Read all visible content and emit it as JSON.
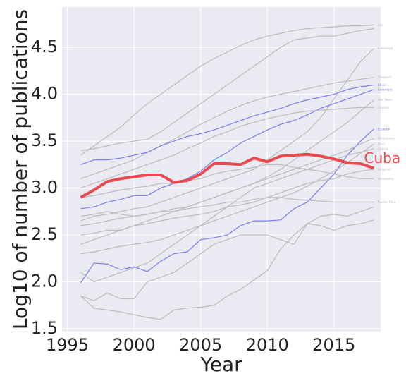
{
  "chart_data": {
    "type": "line",
    "x_label": "Year",
    "y_label": "Log10 of number of publications",
    "x": [
      1996,
      1997,
      1998,
      1999,
      2000,
      2001,
      2002,
      2003,
      2004,
      2005,
      2006,
      2007,
      2008,
      2009,
      2010,
      2011,
      2012,
      2013,
      2014,
      2015,
      2016,
      2017,
      2018
    ],
    "xlim": [
      1994.6,
      2018.5
    ],
    "xticks": [
      1995,
      2000,
      2005,
      2010,
      2015
    ],
    "ylim": [
      1.47,
      4.93
    ],
    "yticks": [
      1.5,
      {
        "value": 2.0,
        "label": "2.0"
      },
      2.5,
      {
        "value": 3.0,
        "label": "3.0"
      },
      3.5,
      {
        "value": 4.0,
        "label": "4.0"
      },
      4.5
    ],
    "grid": true,
    "background": "#eaeaf2",
    "series": [
      {
        "color": "#bbbbbb",
        "values": [
          1.85,
          1.72,
          1.7,
          1.68,
          1.65,
          1.62,
          1.6,
          1.7,
          1.72,
          1.73,
          1.75,
          1.85,
          1.92,
          2.02,
          2.12,
          2.35,
          2.5,
          2.62,
          2.6,
          2.55,
          2.6,
          2.62,
          2.66
        ]
      },
      {
        "color": "#bbbbbb",
        "values": [
          1.85,
          1.8,
          1.88,
          1.82,
          1.82,
          2.0,
          2.05,
          2.1,
          2.2,
          2.3,
          2.4,
          2.45,
          2.5,
          2.5,
          2.5,
          2.45,
          2.4,
          2.62,
          2.7,
          2.72,
          2.7,
          2.75,
          2.8
        ]
      },
      {
        "color": "#bbbbbb",
        "values": [
          3.4,
          3.42,
          3.45,
          3.48,
          3.5,
          3.52,
          3.6,
          3.7,
          3.8,
          3.9,
          4.0,
          4.1,
          4.2,
          4.3,
          4.4,
          4.5,
          4.58,
          4.6,
          4.62,
          4.62,
          4.65,
          4.68,
          4.7
        ]
      },
      {
        "name": "Iran",
        "color": "#bbbbbb",
        "values": [
          3.35,
          3.45,
          3.55,
          3.65,
          3.78,
          3.9,
          4.0,
          4.1,
          4.2,
          4.3,
          4.38,
          4.45,
          4.52,
          4.58,
          4.62,
          4.65,
          4.68,
          4.7,
          4.71,
          4.72,
          4.73,
          4.73,
          4.74
        ]
      },
      {
        "name": "Indonesia",
        "color": "#bbbbbb",
        "values": [
          2.65,
          2.7,
          2.72,
          2.75,
          2.78,
          2.8,
          2.85,
          2.9,
          2.95,
          3.0,
          3.05,
          3.1,
          3.15,
          3.2,
          3.3,
          3.4,
          3.5,
          3.6,
          3.75,
          3.95,
          4.15,
          4.35,
          4.49
        ]
      },
      {
        "name": "Thailand",
        "color": "#bbbbbb",
        "values": [
          3.1,
          3.15,
          3.2,
          3.25,
          3.3,
          3.38,
          3.45,
          3.52,
          3.6,
          3.68,
          3.75,
          3.82,
          3.88,
          3.93,
          3.97,
          4.0,
          4.03,
          4.06,
          4.09,
          4.12,
          4.14,
          4.16,
          4.18
        ]
      },
      {
        "name": "Chile",
        "color": "#7b7bf0",
        "values": [
          3.25,
          3.3,
          3.3,
          3.32,
          3.35,
          3.38,
          3.45,
          3.5,
          3.55,
          3.58,
          3.62,
          3.67,
          3.72,
          3.77,
          3.81,
          3.85,
          3.9,
          3.94,
          3.97,
          4.0,
          4.05,
          4.08,
          4.1
        ]
      },
      {
        "name": "Colombia",
        "color": "#7b7bf0",
        "values": [
          2.78,
          2.8,
          2.85,
          2.88,
          2.92,
          2.92,
          3.0,
          3.05,
          3.1,
          3.18,
          3.3,
          3.38,
          3.48,
          3.55,
          3.62,
          3.68,
          3.72,
          3.78,
          3.85,
          3.9,
          3.95,
          4.0,
          4.05
        ]
      },
      {
        "name": "Viet Nam",
        "color": "#bbbbbb",
        "values": [
          2.4,
          2.45,
          2.5,
          2.55,
          2.6,
          2.65,
          2.7,
          2.75,
          2.8,
          2.85,
          2.9,
          2.95,
          3.0,
          3.05,
          3.12,
          3.2,
          3.3,
          3.4,
          3.5,
          3.6,
          3.7,
          3.82,
          3.94
        ]
      },
      {
        "name": "Croatia",
        "color": "#bbbbbb",
        "values": [
          3.0,
          3.05,
          3.1,
          3.15,
          3.2,
          3.25,
          3.3,
          3.35,
          3.42,
          3.48,
          3.55,
          3.6,
          3.66,
          3.7,
          3.74,
          3.77,
          3.8,
          3.82,
          3.83,
          3.84,
          3.85,
          3.86,
          3.86
        ]
      },
      {
        "name": "Ecuador",
        "color": "#7b7bf0",
        "values": [
          1.99,
          2.2,
          2.19,
          2.13,
          2.16,
          2.11,
          2.22,
          2.3,
          2.32,
          2.45,
          2.47,
          2.5,
          2.6,
          2.65,
          2.65,
          2.66,
          2.78,
          2.85,
          3.0,
          3.15,
          3.35,
          3.5,
          3.63
        ]
      },
      {
        "name": "Philippines",
        "color": "#bbbbbb",
        "values": [
          2.6,
          2.62,
          2.65,
          2.68,
          2.7,
          2.72,
          2.75,
          2.78,
          2.8,
          2.85,
          2.9,
          2.95,
          3.0,
          3.05,
          3.1,
          3.15,
          3.2,
          3.25,
          3.3,
          3.35,
          3.4,
          3.47,
          3.53
        ]
      },
      {
        "name": "Peru",
        "color": "#bbbbbb",
        "values": [
          2.3,
          2.32,
          2.35,
          2.38,
          2.4,
          2.42,
          2.45,
          2.5,
          2.55,
          2.6,
          2.65,
          2.7,
          2.75,
          2.8,
          2.85,
          2.9,
          2.95,
          3.02,
          3.1,
          3.18,
          3.27,
          3.37,
          3.47
        ]
      },
      {
        "name": "Cyprus",
        "color": "#bbbbbb",
        "values": [
          2.1,
          2.0,
          2.05,
          2.1,
          2.15,
          2.2,
          2.3,
          2.4,
          2.5,
          2.6,
          2.7,
          2.8,
          2.9,
          3.0,
          3.05,
          3.1,
          3.15,
          3.2,
          3.25,
          3.3,
          3.35,
          3.38,
          3.42
        ]
      },
      {
        "name": "Uruguay",
        "color": "#bbbbbb",
        "values": [
          2.5,
          2.52,
          2.55,
          2.55,
          2.6,
          2.62,
          2.65,
          2.68,
          2.7,
          2.72,
          2.75,
          2.8,
          2.82,
          2.85,
          2.9,
          2.95,
          3.0,
          3.05,
          3.08,
          3.1,
          3.15,
          3.18,
          3.2
        ]
      },
      {
        "name": "Venezuela",
        "color": "#bbbbbb",
        "values": [
          2.9,
          2.92,
          2.95,
          2.98,
          3.0,
          3.02,
          3.05,
          3.05,
          3.08,
          3.1,
          3.15,
          3.18,
          3.2,
          3.22,
          3.25,
          3.25,
          3.22,
          3.2,
          3.18,
          3.15,
          3.12,
          3.1,
          3.1
        ]
      },
      {
        "name": "Puerto Rico",
        "color": "#bbbbbb",
        "values": [
          2.7,
          2.72,
          2.75,
          2.72,
          2.7,
          2.72,
          2.75,
          2.75,
          2.78,
          2.8,
          2.82,
          2.85,
          2.85,
          2.88,
          2.9,
          2.9,
          2.88,
          2.87,
          2.86,
          2.85,
          2.85,
          2.85,
          2.85
        ]
      }
    ],
    "highlight": {
      "name": "Cuba",
      "color": "#e84a4f",
      "values": [
        2.9,
        2.98,
        3.07,
        3.1,
        3.12,
        3.14,
        3.14,
        3.06,
        3.08,
        3.15,
        3.26,
        3.26,
        3.25,
        3.32,
        3.28,
        3.34,
        3.35,
        3.36,
        3.34,
        3.31,
        3.27,
        3.26,
        3.21
      ]
    }
  }
}
